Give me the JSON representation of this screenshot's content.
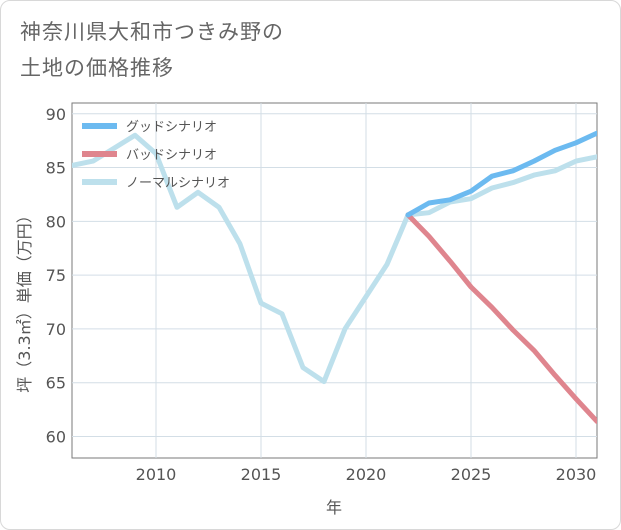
{
  "title_lines": [
    "神奈川県大和市つきみ野の",
    "土地の価格推移"
  ],
  "chart_data": {
    "type": "line",
    "xlabel": "年",
    "ylabel": "坪（3.3㎡）単価（万円）",
    "xlim": [
      2006,
      2031
    ],
    "ylim": [
      58,
      91
    ],
    "xticks": [
      2010,
      2015,
      2020,
      2025,
      2030
    ],
    "yticks": [
      60,
      65,
      70,
      75,
      80,
      85,
      90
    ],
    "grid": true,
    "legend_position": "top-left",
    "series": [
      {
        "name": "グッドシナリオ",
        "color": "#6cbaf0",
        "x": [
          2022,
          2023,
          2024,
          2025,
          2026,
          2027,
          2028,
          2029,
          2030,
          2031
        ],
        "y": [
          80.6,
          81.7,
          82.0,
          82.8,
          84.2,
          84.7,
          85.6,
          86.6,
          87.3,
          88.2
        ]
      },
      {
        "name": "バッドシナリオ",
        "color": "#df858e",
        "x": [
          2022,
          2023,
          2024,
          2025,
          2026,
          2027,
          2028,
          2029,
          2030,
          2031
        ],
        "y": [
          80.6,
          78.6,
          76.3,
          73.9,
          72.0,
          69.9,
          68.0,
          65.7,
          63.5,
          61.4
        ]
      },
      {
        "name": "ノーマルシナリオ",
        "color": "#bde0ec",
        "x": [
          2006,
          2007,
          2008,
          2009,
          2010,
          2011,
          2012,
          2013,
          2014,
          2015,
          2016,
          2017,
          2018,
          2019,
          2020,
          2021,
          2022,
          2023,
          2024,
          2025,
          2026,
          2027,
          2028,
          2029,
          2030,
          2031
        ],
        "y": [
          85.2,
          85.6,
          86.8,
          88.0,
          86.3,
          81.3,
          82.7,
          81.3,
          77.9,
          72.4,
          71.4,
          66.4,
          65.1,
          70.0,
          73.0,
          76.0,
          80.6,
          80.8,
          81.8,
          82.1,
          83.1,
          83.6,
          84.3,
          84.7,
          85.6,
          86.0
        ]
      }
    ]
  }
}
